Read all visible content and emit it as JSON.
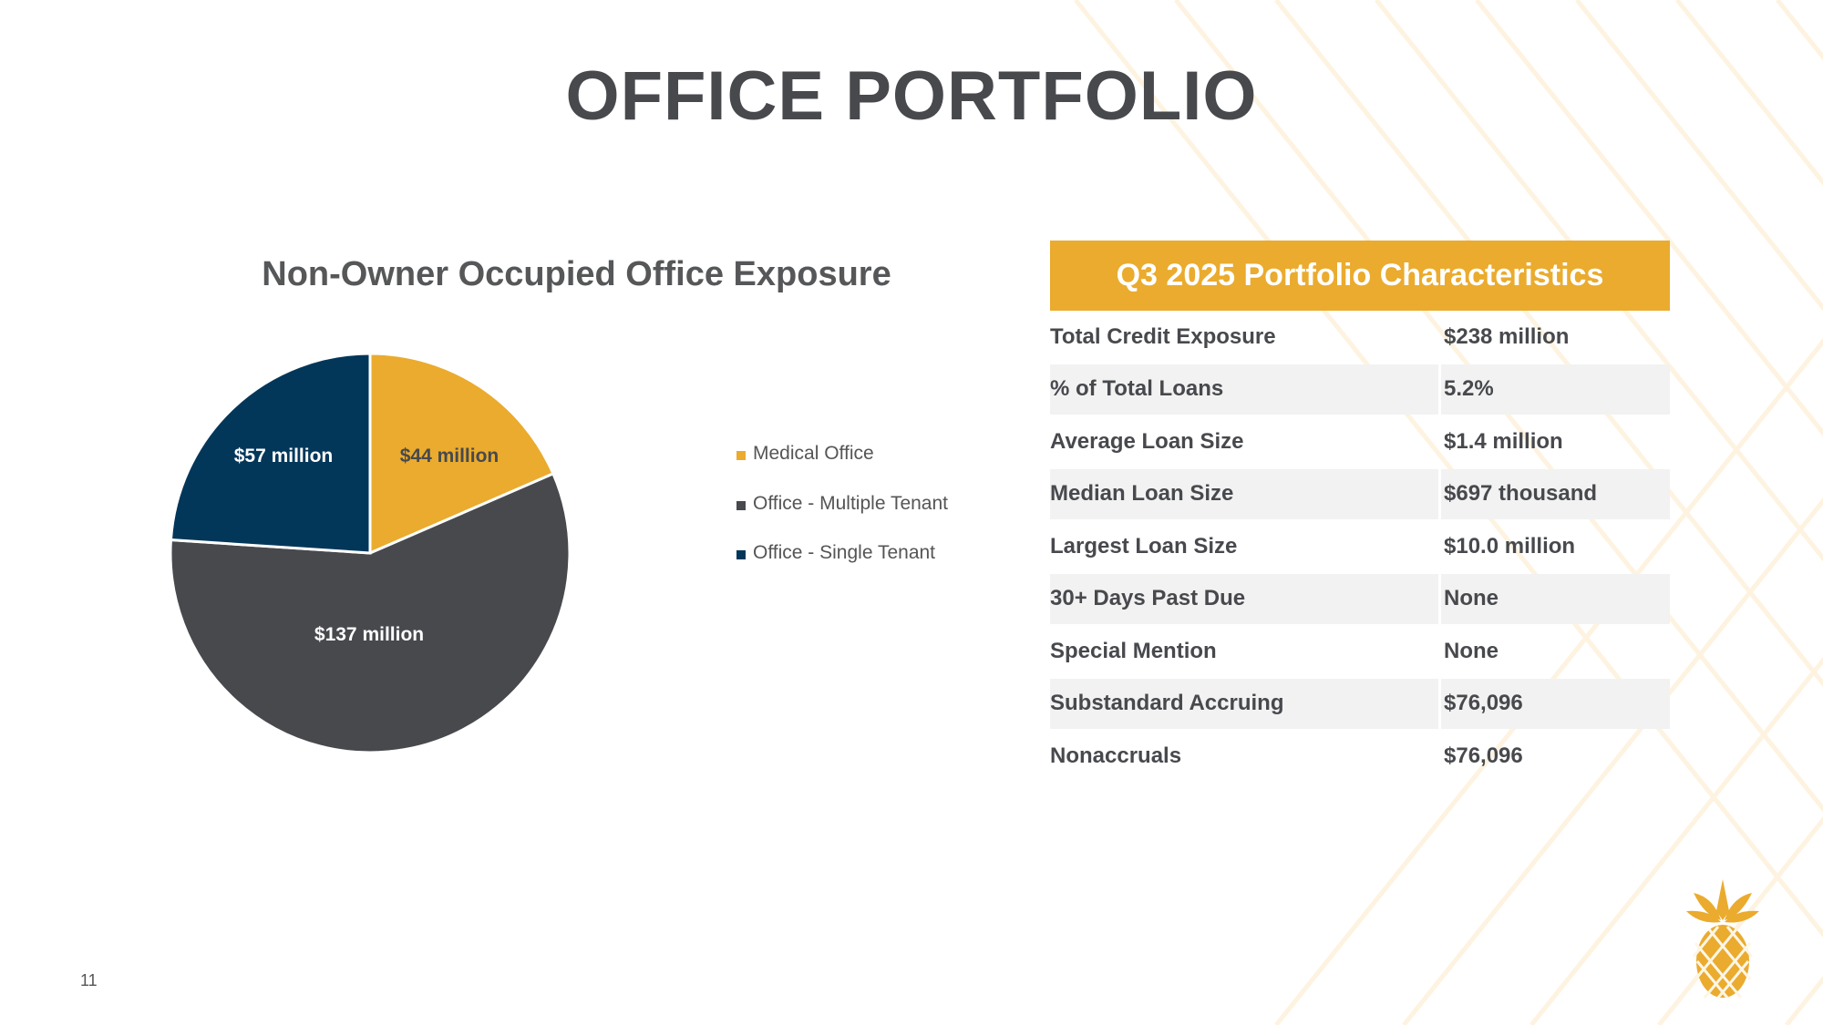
{
  "title": "OFFICE PORTFOLIO",
  "page_number": "11",
  "colors": {
    "accent": "#eaab2e",
    "dark_gray": "#47494d",
    "navy": "#03375a",
    "row_alt": "#f2f2f2"
  },
  "logo_icon": "pineapple-icon",
  "chart_data": {
    "type": "pie",
    "title": "Non-Owner Occupied Office Exposure",
    "legend_position": "right",
    "slices": [
      {
        "name": "Medical Office",
        "value": 44,
        "label": "$44 million",
        "color": "#eaab2e",
        "label_color": "#47494d"
      },
      {
        "name": "Office - Multiple Tenant",
        "value": 137,
        "label": "$137 million",
        "color": "#47494d",
        "label_color": "#ffffff"
      },
      {
        "name": "Office - Single Tenant",
        "value": 57,
        "label": "$57 million",
        "color": "#03375a",
        "label_color": "#ffffff"
      }
    ]
  },
  "table": {
    "header": "Q3 2025 Portfolio Characteristics",
    "rows": [
      {
        "label": "Total Credit Exposure",
        "value": "$238 million"
      },
      {
        "label": "% of Total Loans",
        "value": "5.2%"
      },
      {
        "label": "Average Loan Size",
        "value": "$1.4 million"
      },
      {
        "label": "Median Loan Size",
        "value": "$697 thousand"
      },
      {
        "label": "Largest Loan Size",
        "value": "$10.0 million"
      },
      {
        "label": "30+ Days Past Due",
        "value": "None"
      },
      {
        "label": "Special Mention",
        "value": "None"
      },
      {
        "label": "Substandard Accruing",
        "value": "$76,096"
      },
      {
        "label": "Nonaccruals",
        "value": "$76,096"
      }
    ]
  }
}
